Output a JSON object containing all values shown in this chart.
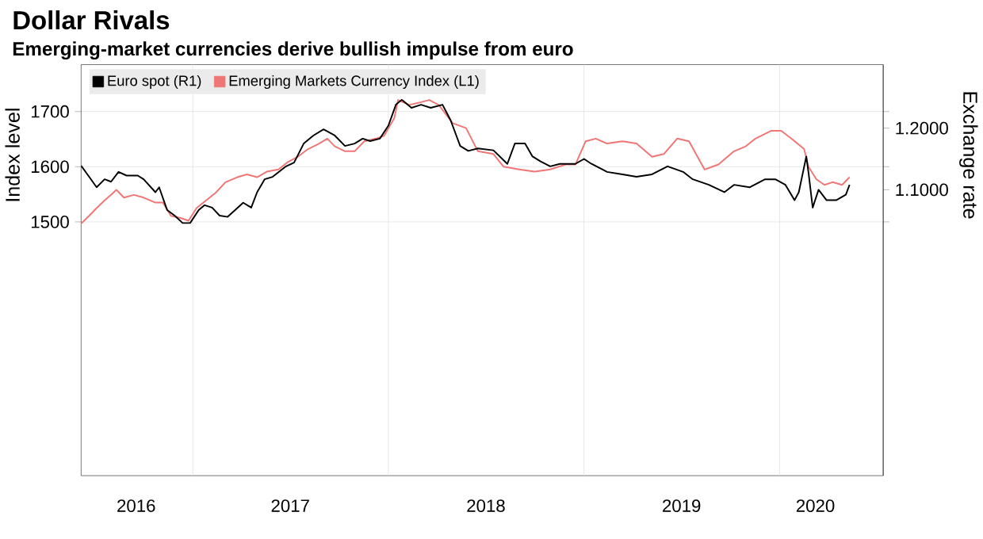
{
  "chart_data": {
    "type": "line",
    "title": "Dollar Rivals",
    "subtitle": "Emerging-market currencies derive bullish impulse from euro",
    "ylabel": "Index level",
    "y2label": "Exchange rate",
    "xlim": [
      "2016-06-06",
      "2020-07-13"
    ],
    "xticks": [
      {
        "value": "2016-09-17",
        "label": "2016"
      },
      {
        "value": "2017-01-01",
        "label": null
      },
      {
        "value": "2017-07-02",
        "label": "2017"
      },
      {
        "value": "2018-01-01",
        "label": null
      },
      {
        "value": "2018-07-02",
        "label": "2018"
      },
      {
        "value": "2019-01-01",
        "label": null
      },
      {
        "value": "2019-07-02",
        "label": "2019"
      },
      {
        "value": "2020-01-01",
        "label": null
      },
      {
        "value": "2020-03-08",
        "label": "2020"
      }
    ],
    "ylim": [
      1040,
      1785
    ],
    "yticks": [
      1500,
      1600,
      1700
    ],
    "y2lim": [
      0.636,
      1.303
    ],
    "y2ticks": [
      {
        "value": 1.1,
        "label": "1.1000"
      },
      {
        "value": 1.2,
        "label": "1.2000"
      }
    ],
    "grid": true,
    "legend": "top left",
    "series": [
      {
        "name": "Euro spot (R1)",
        "color": "#000000",
        "axis": "y2",
        "x": [
          "2016-06-06",
          "2016-06-21",
          "2016-07-05",
          "2016-07-20",
          "2016-08-01",
          "2016-08-15",
          "2016-08-30",
          "2016-09-20",
          "2016-10-01",
          "2016-10-23",
          "2016-10-30",
          "2016-11-14",
          "2016-11-28",
          "2016-12-13",
          "2016-12-27",
          "2017-01-12",
          "2017-01-23",
          "2017-02-06",
          "2017-02-20",
          "2017-03-07",
          "2017-03-21",
          "2017-04-05",
          "2017-04-20",
          "2017-05-01",
          "2017-05-15",
          "2017-05-30",
          "2017-06-24",
          "2017-07-09",
          "2017-07-27",
          "2017-08-14",
          "2017-09-02",
          "2017-09-23",
          "2017-10-12",
          "2017-10-30",
          "2017-11-14",
          "2017-11-28",
          "2017-12-16",
          "2018-01-01",
          "2018-01-15",
          "2018-01-26",
          "2018-02-13",
          "2018-03-03",
          "2018-03-21",
          "2018-04-12",
          "2018-04-27",
          "2018-05-15",
          "2018-05-30",
          "2018-06-17",
          "2018-07-16",
          "2018-08-11",
          "2018-08-25",
          "2018-09-13",
          "2018-09-27",
          "2018-10-12",
          "2018-10-30",
          "2018-11-17",
          "2018-12-16",
          "2019-01-01",
          "2019-01-15",
          "2019-02-13",
          "2019-03-14",
          "2019-04-09",
          "2019-05-08",
          "2019-06-06",
          "2019-07-05",
          "2019-07-23",
          "2019-08-22",
          "2019-09-20",
          "2019-10-08",
          "2019-11-06",
          "2019-12-05",
          "2019-12-24",
          "2020-01-12",
          "2020-01-29",
          "2020-02-06",
          "2020-02-20",
          "2020-02-24",
          "2020-03-03",
          "2020-03-14",
          "2020-03-29",
          "2020-04-16",
          "2020-05-04",
          "2020-05-11"
        ],
        "values": [
          1.139,
          1.121,
          1.104,
          1.117,
          1.113,
          1.129,
          1.123,
          1.123,
          1.117,
          1.096,
          1.104,
          1.067,
          1.058,
          1.046,
          1.046,
          1.067,
          1.075,
          1.071,
          1.058,
          1.056,
          1.067,
          1.079,
          1.071,
          1.096,
          1.117,
          1.121,
          1.138,
          1.144,
          1.175,
          1.188,
          1.198,
          1.188,
          1.171,
          1.175,
          1.183,
          1.179,
          1.183,
          1.204,
          1.238,
          1.246,
          1.233,
          1.238,
          1.233,
          1.238,
          1.213,
          1.171,
          1.163,
          1.167,
          1.164,
          1.142,
          1.175,
          1.175,
          1.154,
          1.146,
          1.138,
          1.142,
          1.142,
          1.15,
          1.142,
          1.129,
          1.125,
          1.121,
          1.125,
          1.138,
          1.129,
          1.117,
          1.108,
          1.096,
          1.108,
          1.104,
          1.117,
          1.117,
          1.108,
          1.083,
          1.096,
          1.154,
          1.129,
          1.071,
          1.1,
          1.083,
          1.083,
          1.092,
          1.108
        ]
      },
      {
        "name": "Emerging Markets Currency Index (L1)",
        "color": "#f07575",
        "axis": "y",
        "x": [
          "2016-06-06",
          "2016-06-21",
          "2016-07-05",
          "2016-07-20",
          "2016-08-01",
          "2016-08-11",
          "2016-08-25",
          "2016-09-13",
          "2016-10-01",
          "2016-10-23",
          "2016-11-06",
          "2016-11-21",
          "2016-12-09",
          "2016-12-24",
          "2017-01-08",
          "2017-01-26",
          "2017-02-13",
          "2017-03-03",
          "2017-03-25",
          "2017-04-12",
          "2017-05-01",
          "2017-05-19",
          "2017-06-10",
          "2017-06-28",
          "2017-07-16",
          "2017-08-04",
          "2017-08-25",
          "2017-09-09",
          "2017-09-23",
          "2017-10-12",
          "2017-10-30",
          "2017-11-17",
          "2017-12-09",
          "2017-12-24",
          "2018-01-12",
          "2018-01-19",
          "2018-02-09",
          "2018-02-27",
          "2018-03-18",
          "2018-04-05",
          "2018-05-01",
          "2018-05-26",
          "2018-06-17",
          "2018-07-16",
          "2018-08-04",
          "2018-09-02",
          "2018-10-01",
          "2018-10-30",
          "2018-11-28",
          "2018-12-16",
          "2019-01-04",
          "2019-01-23",
          "2019-02-13",
          "2019-03-14",
          "2019-04-09",
          "2019-05-08",
          "2019-05-30",
          "2019-06-24",
          "2019-07-16",
          "2019-08-14",
          "2019-09-09",
          "2019-10-08",
          "2019-10-30",
          "2019-11-17",
          "2019-12-16",
          "2020-01-04",
          "2020-01-23",
          "2020-02-16",
          "2020-02-24",
          "2020-03-10",
          "2020-03-25",
          "2020-04-09",
          "2020-04-27",
          "2020-05-11"
        ],
        "values": [
          1497,
          1511,
          1525,
          1539,
          1549,
          1558,
          1544,
          1549,
          1544,
          1535,
          1535,
          1511,
          1507,
          1502,
          1525,
          1539,
          1553,
          1572,
          1581,
          1586,
          1581,
          1591,
          1595,
          1609,
          1618,
          1632,
          1642,
          1651,
          1637,
          1628,
          1628,
          1646,
          1651,
          1656,
          1688,
          1721,
          1712,
          1716,
          1721,
          1712,
          1679,
          1670,
          1628,
          1623,
          1600,
          1595,
          1591,
          1595,
          1604,
          1604,
          1646,
          1651,
          1642,
          1646,
          1642,
          1618,
          1623,
          1651,
          1646,
          1595,
          1604,
          1628,
          1637,
          1651,
          1665,
          1665,
          1651,
          1632,
          1600,
          1577,
          1567,
          1572,
          1567,
          1581
        ]
      }
    ]
  }
}
